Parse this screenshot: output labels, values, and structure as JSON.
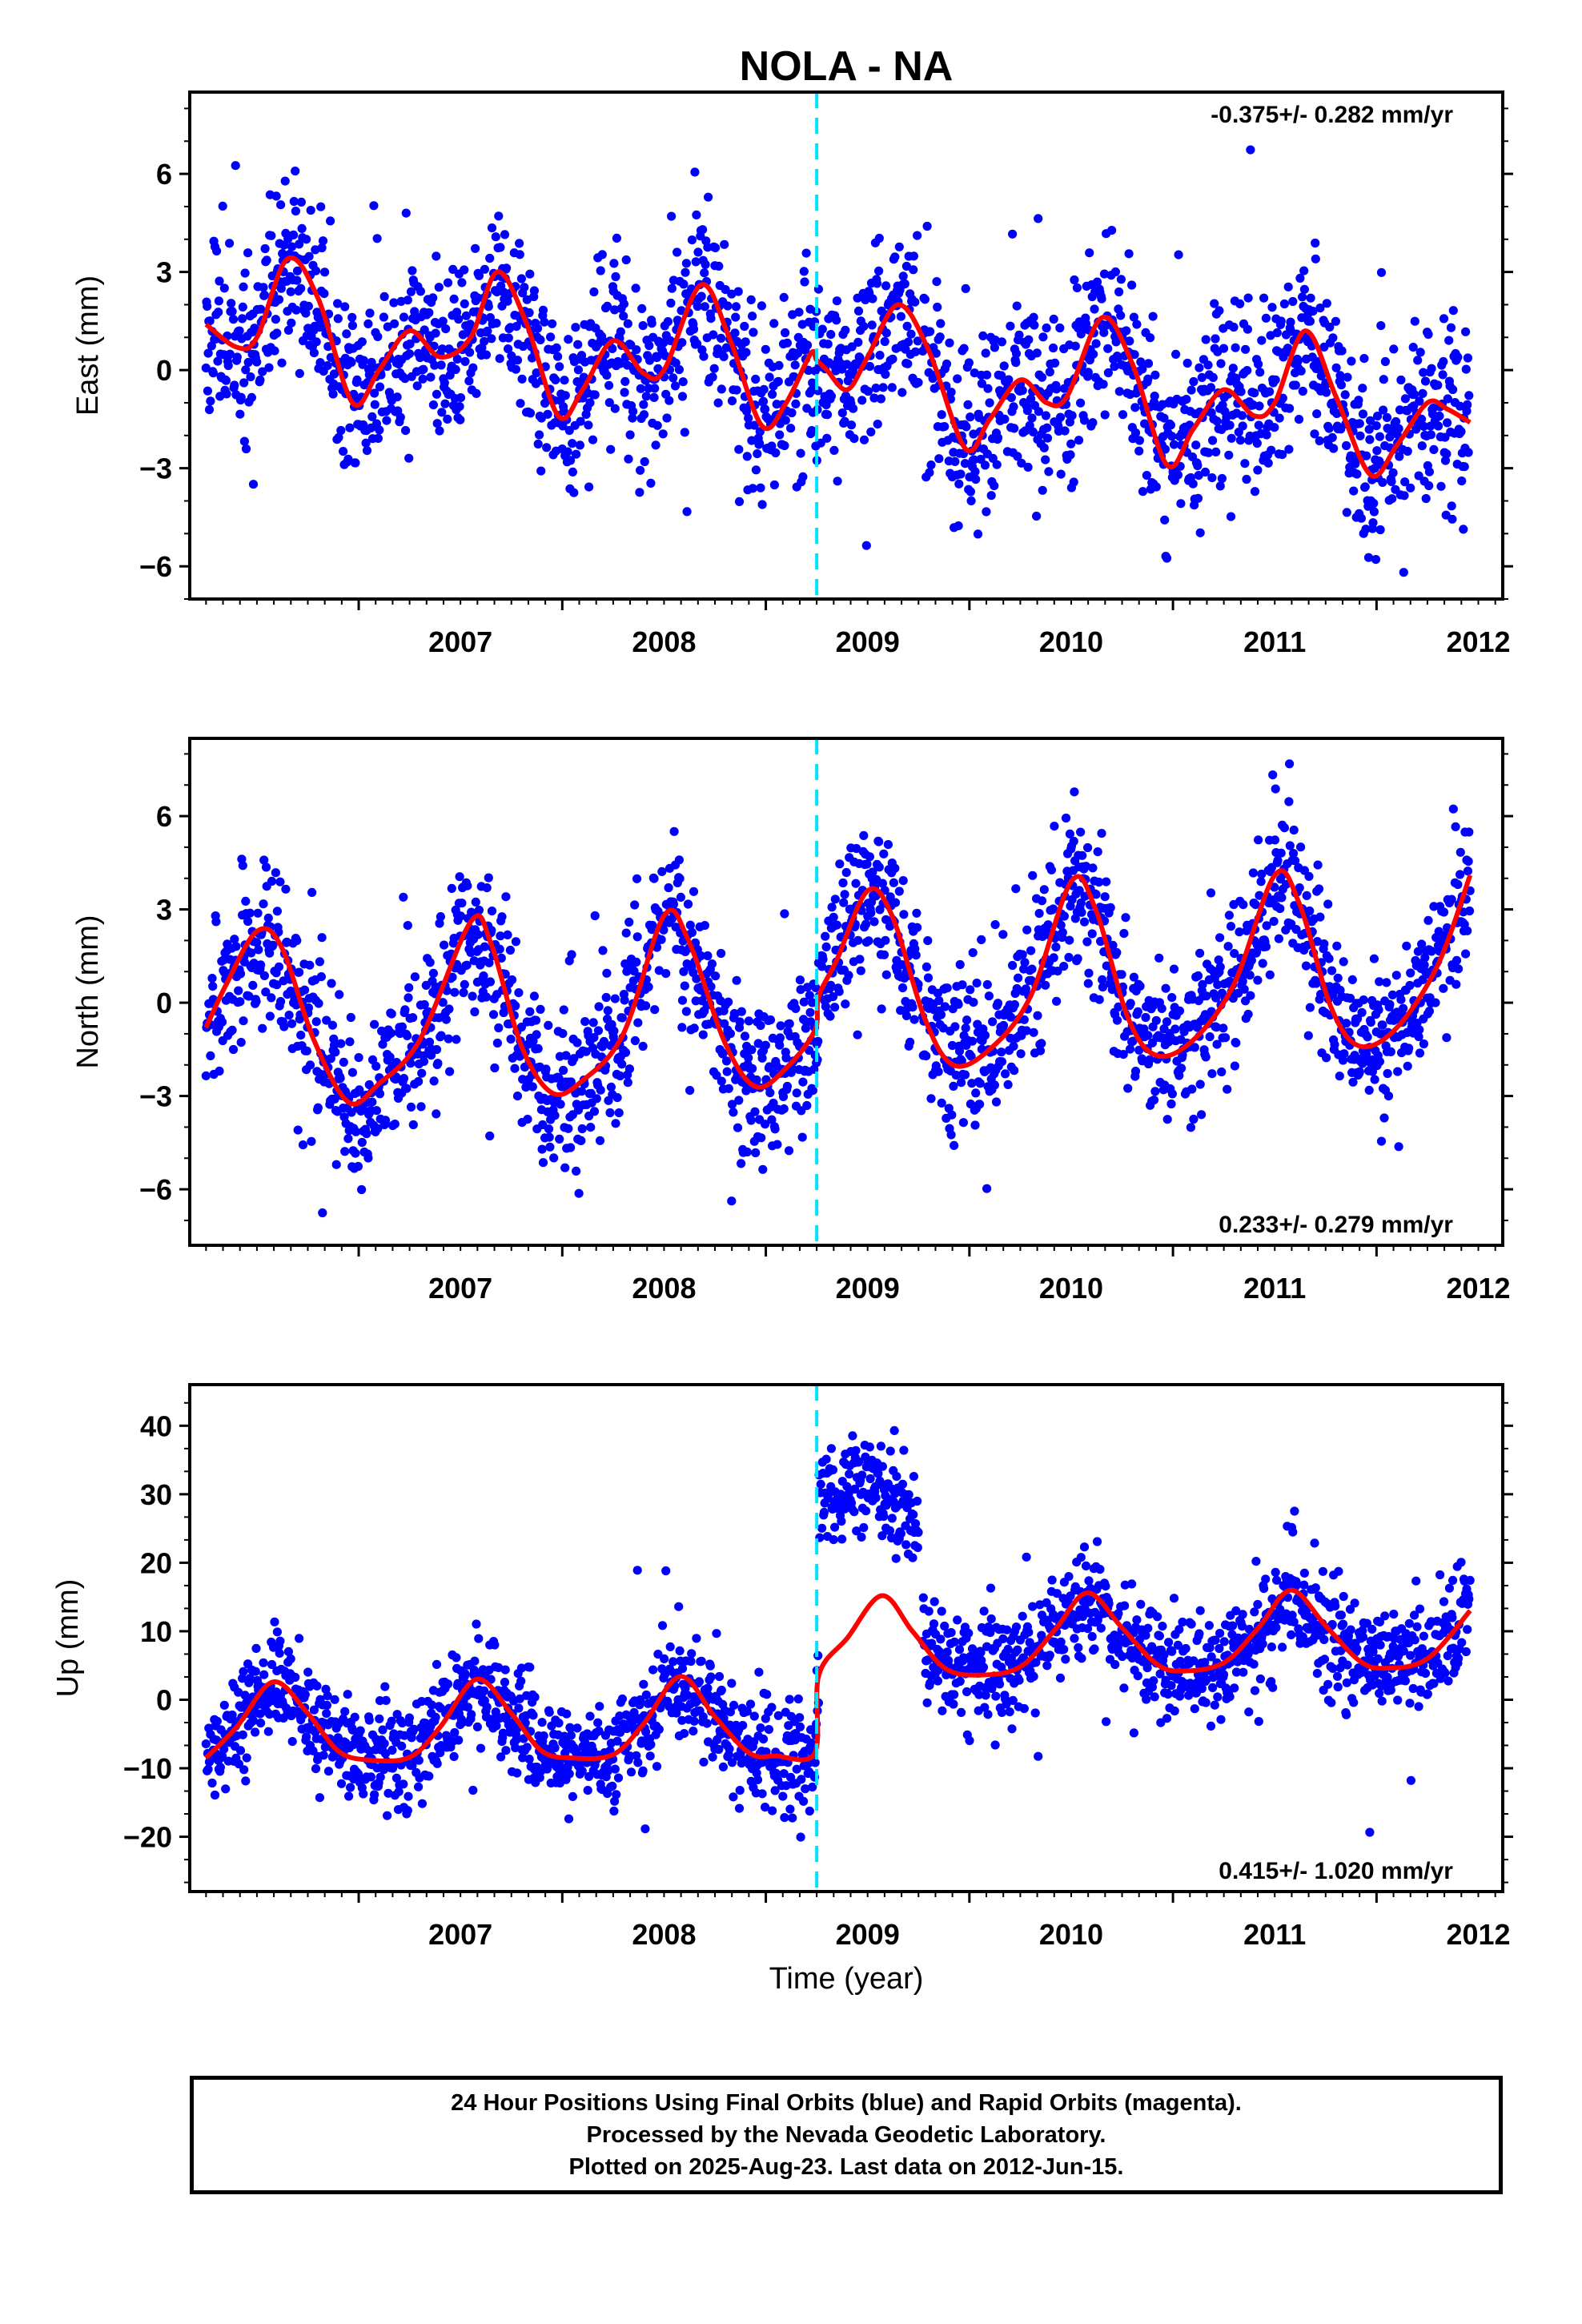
{
  "title": "NOLA - NA",
  "xlabel": "Time (year)",
  "colors": {
    "points": "#0000ff",
    "fit": "#ff0000",
    "event_line": "#00e5ff"
  },
  "x_ticks": [
    "2007",
    "2008",
    "2009",
    "2010",
    "2011",
    "2012"
  ],
  "footer": {
    "line1": "24 Hour Positions Using Final Orbits (blue) and Rapid Orbits (magenta).",
    "line2": "Processed by the Nevada Geodetic Laboratory.",
    "line3": "Plotted on 2025-Aug-23. Last data on 2012-Jun-15."
  },
  "chart_data": [
    {
      "type": "scatter",
      "ylabel": "East (mm)",
      "rate_label": "-0.375+/- 0.282 mm/yr",
      "rate_position": "top-right",
      "xlim": [
        2006.17,
        2012.62
      ],
      "ylim": [
        -7.0,
        8.5
      ],
      "y_ticks": [
        -6,
        -3,
        0,
        3,
        6
      ],
      "x_range_data": [
        2006.25,
        2012.46
      ],
      "event_line_x": 2009.25,
      "series": [
        {
          "kind": "points",
          "noise": 1.4,
          "seed": 11
        },
        {
          "kind": "fit",
          "fit_curve": [
            [
              2006.25,
              1.4
            ],
            [
              2006.4,
              0.7
            ],
            [
              2006.5,
              1.0
            ],
            [
              2006.65,
              3.4
            ],
            [
              2006.8,
              2.2
            ],
            [
              2006.97,
              -1.0
            ],
            [
              2007.1,
              0.0
            ],
            [
              2007.25,
              1.2
            ],
            [
              2007.4,
              0.4
            ],
            [
              2007.55,
              1.0
            ],
            [
              2007.68,
              3.0
            ],
            [
              2007.82,
              1.5
            ],
            [
              2007.98,
              -1.4
            ],
            [
              2008.1,
              -0.6
            ],
            [
              2008.25,
              0.9
            ],
            [
              2008.4,
              -0.1
            ],
            [
              2008.5,
              0.0
            ],
            [
              2008.68,
              2.6
            ],
            [
              2008.82,
              1.0
            ],
            [
              2008.98,
              -1.7
            ],
            [
              2009.1,
              -1.0
            ],
            [
              2009.22,
              0.5
            ],
            [
              2009.25,
              0.3
            ],
            [
              2009.3,
              0.0
            ],
            [
              2009.4,
              -0.6
            ],
            [
              2009.5,
              0.4
            ],
            [
              2009.65,
              2.0
            ],
            [
              2009.8,
              0.6
            ],
            [
              2009.98,
              -2.4
            ],
            [
              2010.1,
              -1.5
            ],
            [
              2010.25,
              -0.3
            ],
            [
              2010.38,
              -1.0
            ],
            [
              2010.48,
              -0.8
            ],
            [
              2010.65,
              1.6
            ],
            [
              2010.8,
              0.2
            ],
            [
              2010.97,
              -2.9
            ],
            [
              2011.1,
              -1.8
            ],
            [
              2011.25,
              -0.6
            ],
            [
              2011.4,
              -1.4
            ],
            [
              2011.5,
              -1.0
            ],
            [
              2011.65,
              1.2
            ],
            [
              2011.8,
              -0.8
            ],
            [
              2011.97,
              -3.2
            ],
            [
              2012.1,
              -2.3
            ],
            [
              2012.25,
              -1.0
            ],
            [
              2012.35,
              -1.2
            ],
            [
              2012.46,
              -1.6
            ]
          ]
        }
      ]
    },
    {
      "type": "scatter",
      "ylabel": "North (mm)",
      "rate_label": "0.233+/- 0.279 mm/yr",
      "rate_position": "bottom-right",
      "xlim": [
        2006.17,
        2012.62
      ],
      "ylim": [
        -7.8,
        8.5
      ],
      "y_ticks": [
        -6,
        -3,
        0,
        3,
        6
      ],
      "x_range_data": [
        2006.25,
        2012.46
      ],
      "event_line_x": 2009.25,
      "series": [
        {
          "kind": "points",
          "noise": 1.2,
          "seed": 23
        },
        {
          "kind": "fit",
          "fit_curve": [
            [
              2006.25,
              -0.8
            ],
            [
              2006.35,
              0.6
            ],
            [
              2006.5,
              2.3
            ],
            [
              2006.62,
              1.8
            ],
            [
              2006.78,
              -1.2
            ],
            [
              2006.95,
              -3.2
            ],
            [
              2007.1,
              -2.6
            ],
            [
              2007.3,
              -1.2
            ],
            [
              2007.55,
              2.6
            ],
            [
              2007.65,
              1.9
            ],
            [
              2007.8,
              -1.4
            ],
            [
              2007.95,
              -2.9
            ],
            [
              2008.1,
              -2.5
            ],
            [
              2008.3,
              -1.0
            ],
            [
              2008.5,
              2.8
            ],
            [
              2008.62,
              2.0
            ],
            [
              2008.8,
              -1.3
            ],
            [
              2008.95,
              -2.7
            ],
            [
              2009.1,
              -2.1
            ],
            [
              2009.24,
              -0.9
            ],
            [
              2009.26,
              0.2
            ],
            [
              2009.35,
              1.4
            ],
            [
              2009.5,
              3.6
            ],
            [
              2009.62,
              2.8
            ],
            [
              2009.78,
              -0.5
            ],
            [
              2009.92,
              -2.0
            ],
            [
              2010.1,
              -1.5
            ],
            [
              2010.3,
              0.2
            ],
            [
              2010.5,
              3.9
            ],
            [
              2010.62,
              3.0
            ],
            [
              2010.78,
              -0.5
            ],
            [
              2010.92,
              -1.7
            ],
            [
              2011.1,
              -1.2
            ],
            [
              2011.3,
              0.6
            ],
            [
              2011.5,
              4.1
            ],
            [
              2011.62,
              3.2
            ],
            [
              2011.78,
              -0.2
            ],
            [
              2011.92,
              -1.4
            ],
            [
              2012.1,
              -0.8
            ],
            [
              2012.3,
              1.2
            ],
            [
              2012.46,
              4.1
            ]
          ]
        }
      ]
    },
    {
      "type": "scatter",
      "ylabel": "Up (mm)",
      "rate_label": "0.415+/- 1.020 mm/yr",
      "rate_position": "bottom-right",
      "xlim": [
        2006.17,
        2012.62
      ],
      "ylim": [
        -28,
        46
      ],
      "y_ticks": [
        -20,
        -10,
        0,
        10,
        20,
        30,
        40
      ],
      "x_range_data": [
        2006.25,
        2012.46
      ],
      "event_line_x": 2009.25,
      "series": [
        {
          "kind": "points",
          "noise": 3.8,
          "seed": 37,
          "offset_segment": [
            2009.26,
            2009.75,
            29.0
          ]
        },
        {
          "kind": "fit",
          "fit_curve": [
            [
              2006.25,
              -8.5
            ],
            [
              2006.4,
              -4.0
            ],
            [
              2006.58,
              2.6
            ],
            [
              2006.75,
              -2.0
            ],
            [
              2006.9,
              -7.5
            ],
            [
              2007.05,
              -8.8
            ],
            [
              2007.25,
              -8.4
            ],
            [
              2007.4,
              -4.0
            ],
            [
              2007.58,
              3.0
            ],
            [
              2007.75,
              -2.0
            ],
            [
              2007.9,
              -7.5
            ],
            [
              2008.05,
              -8.5
            ],
            [
              2008.25,
              -8.0
            ],
            [
              2008.4,
              -3.5
            ],
            [
              2008.58,
              3.4
            ],
            [
              2008.75,
              -2.5
            ],
            [
              2008.92,
              -7.8
            ],
            [
              2009.05,
              -8.2
            ],
            [
              2009.24,
              -7.8
            ],
            [
              2009.26,
              3.6
            ],
            [
              2009.4,
              9.0
            ],
            [
              2009.57,
              15.2
            ],
            [
              2009.72,
              10.0
            ],
            [
              2009.88,
              4.6
            ],
            [
              2010.05,
              3.6
            ],
            [
              2010.25,
              4.8
            ],
            [
              2010.42,
              10.2
            ],
            [
              2010.58,
              15.6
            ],
            [
              2010.75,
              10.5
            ],
            [
              2010.92,
              5.2
            ],
            [
              2011.05,
              4.2
            ],
            [
              2011.25,
              5.4
            ],
            [
              2011.42,
              10.5
            ],
            [
              2011.58,
              16.0
            ],
            [
              2011.75,
              10.8
            ],
            [
              2011.92,
              5.6
            ],
            [
              2012.05,
              4.6
            ],
            [
              2012.25,
              6.0
            ],
            [
              2012.46,
              13.0
            ]
          ]
        }
      ]
    }
  ]
}
